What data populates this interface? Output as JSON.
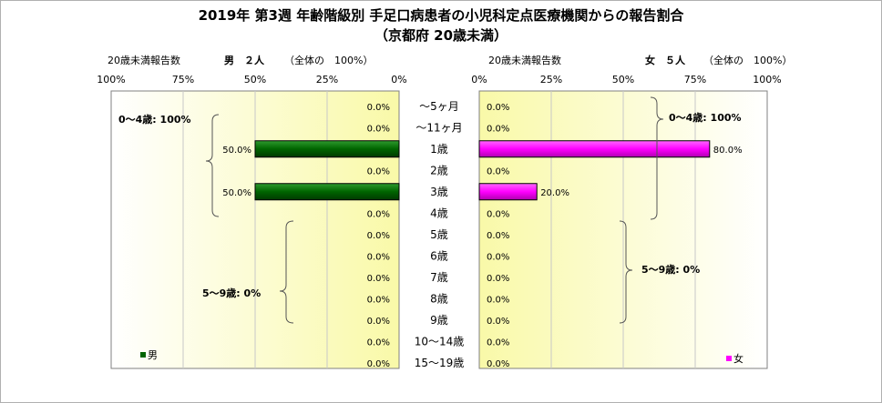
{
  "chart_data": {
    "type": "bar",
    "title_line1": "2019年 第3週 年齢階級別 手足口病患者の小児科定点医療機関からの報告割合",
    "title_line2": "（京都府 20歳未満）",
    "categories": [
      "～5ヶ月",
      "～11ヶ月",
      "1歳",
      "2歳",
      "3歳",
      "4歳",
      "5歳",
      "6歳",
      "7歳",
      "8歳",
      "9歳",
      "10～14歳",
      "15～19歳"
    ],
    "x_ticks_left": [
      "100%",
      "75%",
      "50%",
      "25%",
      "0%"
    ],
    "x_ticks_right": [
      "0%",
      "25%",
      "50%",
      "75%",
      "100%"
    ],
    "xlim": [
      0,
      100
    ],
    "grid": true,
    "series": [
      {
        "name": "男",
        "header_label": "20歳未満報告数",
        "header_count": "男　２人",
        "header_note": "（全体の　100%）",
        "side": "left",
        "color": "#006400",
        "values": [
          0.0,
          0.0,
          50.0,
          0.0,
          50.0,
          0.0,
          0.0,
          0.0,
          0.0,
          0.0,
          0.0,
          0.0,
          0.0
        ],
        "labels": [
          "0.0%",
          "0.0%",
          "50.0%",
          "0.0%",
          "50.0%",
          "0.0%",
          "0.0%",
          "0.0%",
          "0.0%",
          "0.0%",
          "0.0%",
          "0.0%",
          "0.0%"
        ],
        "group_labels": [
          "0～4歳: 100%",
          "5～9歳: 0%"
        ],
        "legend": "男"
      },
      {
        "name": "女",
        "header_label": "20歳未満報告数",
        "header_count": "女　５人",
        "header_note": "（全体の　100%）",
        "side": "right",
        "color": "#ff00ff",
        "values": [
          0.0,
          0.0,
          80.0,
          0.0,
          20.0,
          0.0,
          0.0,
          0.0,
          0.0,
          0.0,
          0.0,
          0.0,
          0.0
        ],
        "labels": [
          "0.0%",
          "0.0%",
          "80.0%",
          "0.0%",
          "20.0%",
          "0.0%",
          "0.0%",
          "0.0%",
          "0.0%",
          "0.0%",
          "0.0%",
          "0.0%",
          "0.0%"
        ],
        "group_labels": [
          "0～4歳: 100%",
          "5～9歳: 0%"
        ],
        "legend": "女"
      }
    ]
  }
}
